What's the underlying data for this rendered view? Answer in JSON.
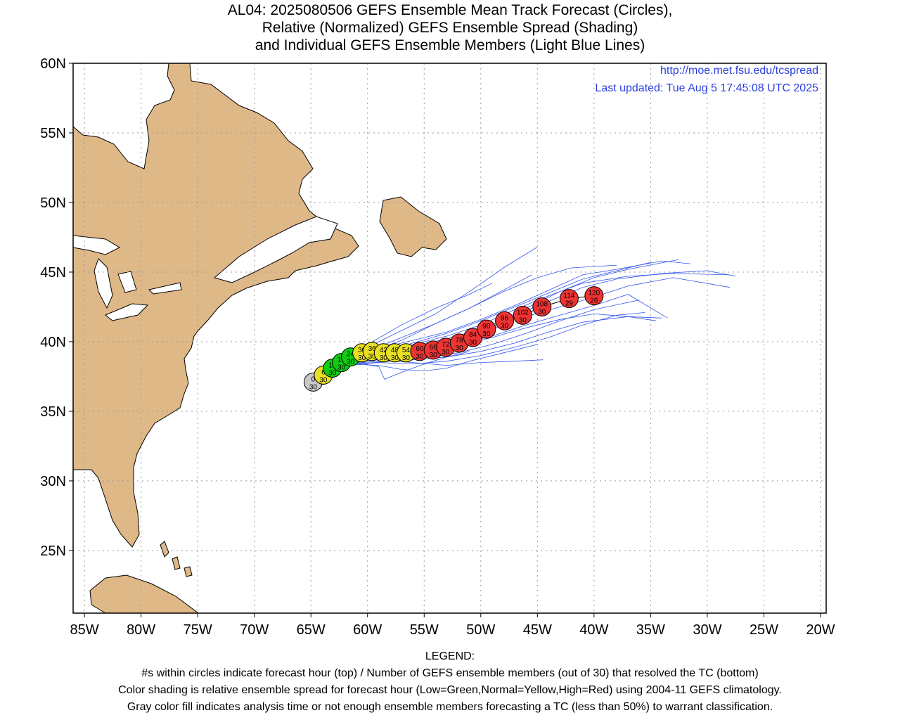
{
  "title": {
    "line1": "AL04: 2025080506 GEFS Ensemble Mean Track Forecast (Circles),",
    "line2": "Relative (Normalized) GEFS Ensemble Spread (Shading)",
    "line3": "and Individual GEFS Ensemble Members (Light Blue Lines)"
  },
  "info": {
    "url": "http://moe.met.fsu.edu/tcspread",
    "updated": "Last updated: Tue Aug  5 17:45:08 UTC 2025"
  },
  "axes": {
    "lon_labels": [
      "85W",
      "80W",
      "75W",
      "70W",
      "65W",
      "60W",
      "55W",
      "50W",
      "45W",
      "40W",
      "35W",
      "30W",
      "25W",
      "20W"
    ],
    "lon_values": [
      -85,
      -80,
      -75,
      -70,
      -65,
      -60,
      -55,
      -50,
      -45,
      -40,
      -35,
      -30,
      -25,
      -20
    ],
    "lat_labels": [
      "60N",
      "55N",
      "50N",
      "45N",
      "40N",
      "35N",
      "30N",
      "25N"
    ],
    "lat_values": [
      60,
      55,
      50,
      45,
      40,
      35,
      30,
      25
    ],
    "lon_range": [
      -86,
      -19.5
    ],
    "lat_range": [
      20.5,
      60
    ],
    "grid": true
  },
  "colors": {
    "land": "#deb887",
    "member_track": "#3355ee",
    "gray": "#c8c8c8",
    "green": "#11cc11",
    "yellow": "#e8e022",
    "red": "#ee3333"
  },
  "track": [
    {
      "hour": "0",
      "members": "30",
      "lon": -64.8,
      "lat": 37.1,
      "spread": "gray"
    },
    {
      "hour": "6",
      "members": "30",
      "lon": -63.9,
      "lat": 37.6,
      "spread": "yellow"
    },
    {
      "hour": "12",
      "members": "30",
      "lon": -63.1,
      "lat": 38.1,
      "spread": "green"
    },
    {
      "hour": "18",
      "members": "30",
      "lon": -62.3,
      "lat": 38.5,
      "spread": "green"
    },
    {
      "hour": "24",
      "members": "30",
      "lon": -61.5,
      "lat": 38.9,
      "spread": "green"
    },
    {
      "hour": "30",
      "members": "30",
      "lon": -60.5,
      "lat": 39.2,
      "spread": "yellow"
    },
    {
      "hour": "36",
      "members": "30",
      "lon": -59.6,
      "lat": 39.3,
      "spread": "yellow"
    },
    {
      "hour": "42",
      "members": "30",
      "lon": -58.6,
      "lat": 39.2,
      "spread": "yellow"
    },
    {
      "hour": "48",
      "members": "30",
      "lon": -57.6,
      "lat": 39.2,
      "spread": "yellow"
    },
    {
      "hour": "54",
      "members": "30",
      "lon": -56.6,
      "lat": 39.2,
      "spread": "yellow"
    },
    {
      "hour": "60",
      "members": "30",
      "lon": -55.4,
      "lat": 39.3,
      "spread": "red"
    },
    {
      "hour": "66",
      "members": "30",
      "lon": -54.2,
      "lat": 39.4,
      "spread": "red"
    },
    {
      "hour": "72",
      "members": "30",
      "lon": -53.1,
      "lat": 39.6,
      "spread": "red"
    },
    {
      "hour": "78",
      "members": "30",
      "lon": -51.9,
      "lat": 39.9,
      "spread": "red"
    },
    {
      "hour": "84",
      "members": "30",
      "lon": -50.7,
      "lat": 40.3,
      "spread": "red"
    },
    {
      "hour": "90",
      "members": "30",
      "lon": -49.5,
      "lat": 40.9,
      "spread": "red"
    },
    {
      "hour": "96",
      "members": "30",
      "lon": -47.9,
      "lat": 41.5,
      "spread": "red"
    },
    {
      "hour": "102",
      "members": "30",
      "lon": -46.3,
      "lat": 41.9,
      "spread": "red"
    },
    {
      "hour": "108",
      "members": "30",
      "lon": -44.6,
      "lat": 42.5,
      "spread": "red"
    },
    {
      "hour": "114",
      "members": "29",
      "lon": -42.2,
      "lat": 43.1,
      "spread": "red"
    },
    {
      "hour": "120",
      "members": "26",
      "lon": -40.0,
      "lat": 43.3,
      "spread": "red"
    }
  ],
  "members": [
    [
      [
        -63,
        38.3
      ],
      [
        -60,
        39.3
      ],
      [
        -57,
        40.3
      ],
      [
        -54,
        41.3
      ],
      [
        -51,
        42.4
      ],
      [
        -48,
        43.7
      ],
      [
        -45.5,
        44.8
      ]
    ],
    [
      [
        -63,
        38.2
      ],
      [
        -60,
        39.6
      ],
      [
        -57,
        40.8
      ],
      [
        -54,
        42
      ],
      [
        -51,
        43.6
      ],
      [
        -48,
        45.3
      ],
      [
        -45,
        46.8
      ]
    ],
    [
      [
        -63,
        38.3
      ],
      [
        -60,
        39.8
      ],
      [
        -57,
        41.2
      ],
      [
        -54,
        42.4
      ],
      [
        -51,
        43.4
      ],
      [
        -49,
        44.2
      ]
    ],
    [
      [
        -62,
        38.7
      ],
      [
        -59,
        39.5
      ],
      [
        -56,
        40.1
      ],
      [
        -53,
        40.7
      ],
      [
        -50,
        41.6
      ],
      [
        -47,
        42.6
      ],
      [
        -44,
        43.7
      ],
      [
        -41,
        44.8
      ],
      [
        -38,
        45.2
      ],
      [
        -34,
        45.8
      ],
      [
        -31.5,
        45.6
      ]
    ],
    [
      [
        -62,
        38.5
      ],
      [
        -59,
        39.3
      ],
      [
        -56,
        39.8
      ],
      [
        -53,
        40.4
      ],
      [
        -50,
        41.2
      ],
      [
        -47,
        42.3
      ],
      [
        -44,
        43.3
      ],
      [
        -41,
        44.2
      ],
      [
        -37,
        44.7
      ],
      [
        -33,
        44.9
      ],
      [
        -28,
        44.8
      ]
    ],
    [
      [
        -61,
        38.6
      ],
      [
        -58,
        39
      ],
      [
        -55,
        39.5
      ],
      [
        -52,
        40.1
      ],
      [
        -49,
        40.9
      ],
      [
        -46,
        41.8
      ],
      [
        -43,
        42.5
      ],
      [
        -40,
        43.2
      ],
      [
        -37,
        44
      ],
      [
        -33,
        44.6
      ],
      [
        -28,
        43.9
      ]
    ],
    [
      [
        -61,
        38.8
      ],
      [
        -58,
        39.2
      ],
      [
        -55,
        39.6
      ],
      [
        -52,
        40.2
      ],
      [
        -49,
        41.2
      ],
      [
        -46,
        42.4
      ],
      [
        -43,
        43.6
      ],
      [
        -40,
        44.6
      ],
      [
        -37,
        45.2
      ],
      [
        -32.5,
        45.9
      ]
    ],
    [
      [
        -61,
        38.4
      ],
      [
        -58,
        38.6
      ],
      [
        -55,
        38.9
      ],
      [
        -52,
        39.2
      ],
      [
        -49,
        39.8
      ],
      [
        -46,
        40.6
      ],
      [
        -43,
        41.5
      ],
      [
        -40,
        42.3
      ],
      [
        -36,
        43
      ]
    ],
    [
      [
        -62,
        38.4
      ],
      [
        -59,
        38.6
      ],
      [
        -56,
        38.7
      ],
      [
        -53,
        38.9
      ],
      [
        -50,
        39.3
      ],
      [
        -47,
        39.9
      ],
      [
        -44,
        40.7
      ],
      [
        -41,
        41.4
      ],
      [
        -37,
        41.8
      ],
      [
        -34,
        41.7
      ]
    ],
    [
      [
        -62,
        38.3
      ],
      [
        -59,
        38.5
      ],
      [
        -56,
        38.4
      ],
      [
        -53,
        38.6
      ],
      [
        -50,
        39
      ],
      [
        -47,
        39.6
      ],
      [
        -44,
        40.3
      ],
      [
        -41,
        41.2
      ],
      [
        -38,
        41.9
      ],
      [
        -35.5,
        42.1
      ]
    ],
    [
      [
        -62,
        38.5
      ],
      [
        -59,
        38.7
      ],
      [
        -56,
        38.5
      ],
      [
        -53,
        38.3
      ],
      [
        -50,
        38.5
      ],
      [
        -47,
        38.6
      ],
      [
        -44.5,
        38.7
      ]
    ],
    [
      [
        -62,
        38.4
      ],
      [
        -59,
        38.3
      ],
      [
        -57,
        38
      ],
      [
        -55,
        37.9
      ],
      [
        -53,
        38.1
      ],
      [
        -51,
        38.6
      ],
      [
        -48,
        39.2
      ],
      [
        -45,
        39.8
      ]
    ],
    [
      [
        -61,
        38.5
      ],
      [
        -59,
        38.2
      ],
      [
        -58.5,
        37.3
      ],
      [
        -57,
        37.8
      ],
      [
        -55,
        38.4
      ],
      [
        -53,
        38.9
      ],
      [
        -51,
        39.3
      ]
    ],
    [
      [
        -62,
        38.6
      ],
      [
        -59,
        39.2
      ],
      [
        -56,
        39.9
      ],
      [
        -53,
        40.6
      ],
      [
        -50,
        41.5
      ],
      [
        -47,
        42.5
      ],
      [
        -44,
        43.5
      ],
      [
        -41,
        44.5
      ],
      [
        -38,
        45.1
      ],
      [
        -35,
        45.7
      ]
    ],
    [
      [
        -62,
        38.6
      ],
      [
        -59,
        39.1
      ],
      [
        -56,
        39.7
      ],
      [
        -53,
        40.2
      ],
      [
        -50,
        40.9
      ],
      [
        -47,
        41.9
      ],
      [
        -44,
        42.9
      ],
      [
        -41,
        43.9
      ],
      [
        -38,
        44.5
      ],
      [
        -34,
        44.9
      ],
      [
        -30,
        45.1
      ],
      [
        -27.5,
        44.7
      ]
    ],
    [
      [
        -61,
        38.7
      ],
      [
        -58,
        39.1
      ],
      [
        -55,
        39.4
      ],
      [
        -52,
        39.8
      ],
      [
        -49,
        40.4
      ],
      [
        -46,
        41.2
      ],
      [
        -43,
        41.9
      ],
      [
        -40,
        42.6
      ],
      [
        -37,
        43.4
      ],
      [
        -33.5,
        41.7
      ]
    ],
    [
      [
        -61,
        38.5
      ],
      [
        -58,
        38.9
      ],
      [
        -55,
        39.3
      ],
      [
        -52,
        39.7
      ],
      [
        -49,
        40.3
      ],
      [
        -46,
        41
      ],
      [
        -43,
        41.6
      ],
      [
        -40,
        42
      ],
      [
        -37,
        41.8
      ],
      [
        -34.5,
        41.5
      ]
    ],
    [
      [
        -63,
        38.1
      ],
      [
        -60,
        39.2
      ],
      [
        -57,
        40.1
      ],
      [
        -54,
        41.3
      ],
      [
        -51,
        42.4
      ],
      [
        -48,
        43.6
      ],
      [
        -45,
        44.6
      ],
      [
        -42,
        45.3
      ],
      [
        -38,
        45.5
      ]
    ]
  ],
  "legend": {
    "title": "LEGEND:",
    "line1": "#s within circles indicate forecast hour (top) / Number of GEFS ensemble members (out of 30) that resolved the TC (bottom)",
    "line2": "Color shading is relative ensemble spread for forecast hour (Low=Green,Normal=Yellow,High=Red) using 2004-11 GEFS climatology.",
    "line3": "Gray color fill indicates analysis time or not enough ensemble members forecasting a TC (less than 50%) to warrant classification."
  }
}
